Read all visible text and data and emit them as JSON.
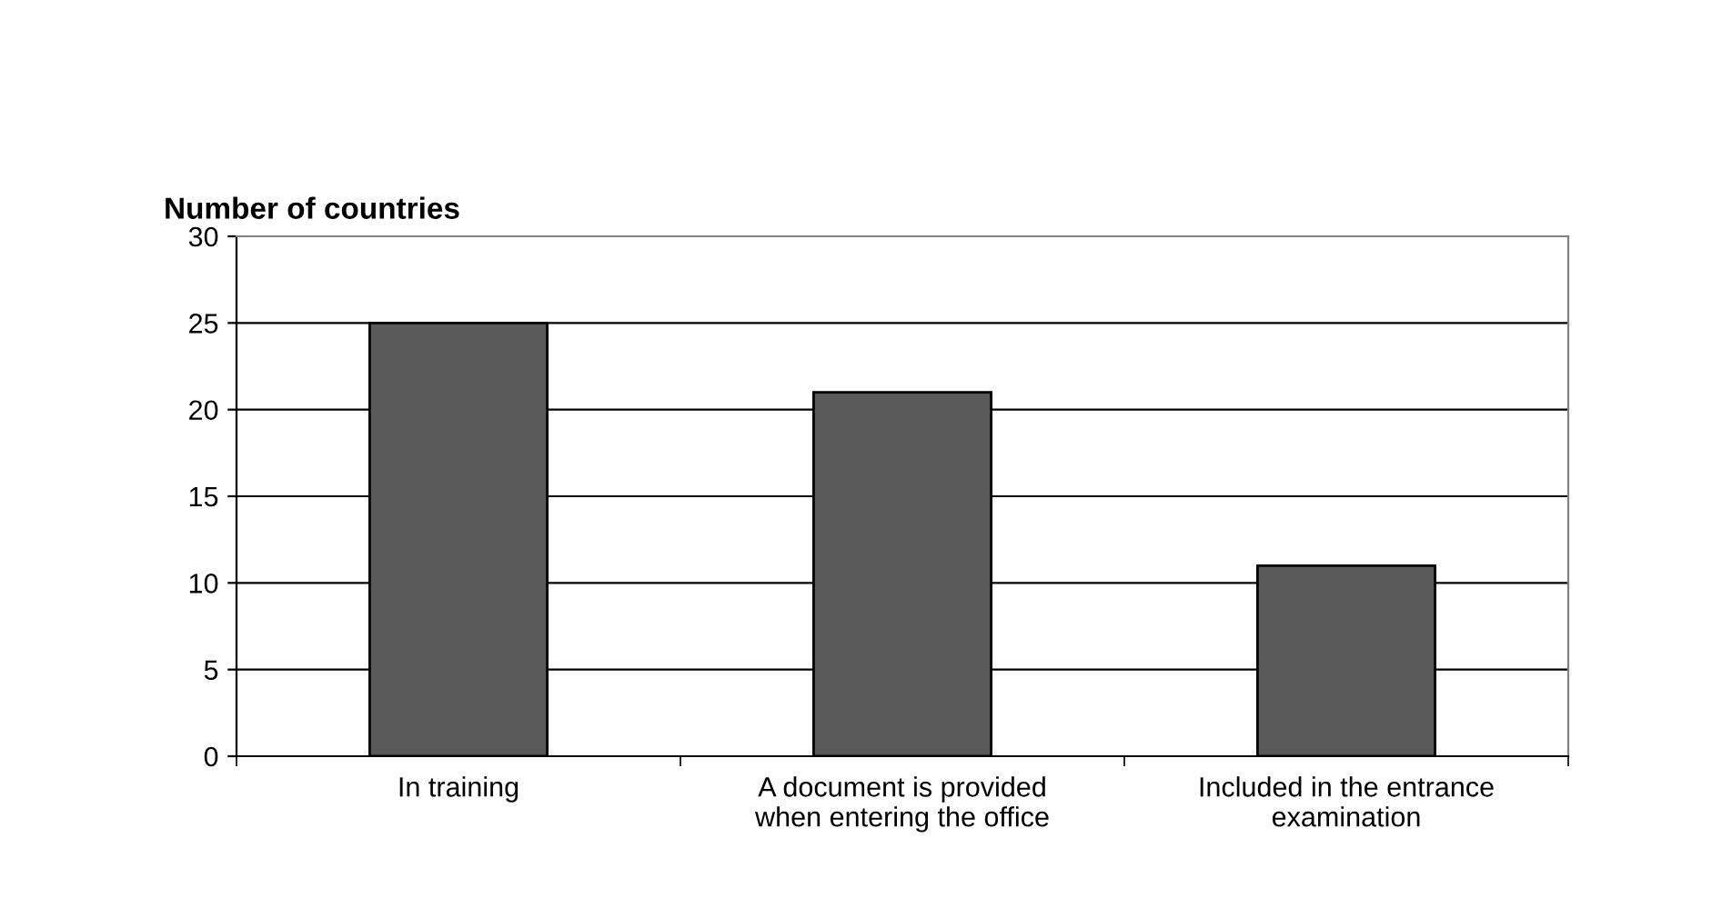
{
  "chart_data": {
    "type": "bar",
    "title": "Number of countries",
    "categories": [
      "In training",
      "A document is provided\nwhen entering the office",
      "Included in the entrance\nexamination"
    ],
    "values": [
      25,
      21,
      11
    ],
    "color": "#595959",
    "ylim": [
      0,
      30
    ],
    "yticks": [
      0,
      5,
      10,
      15,
      20,
      25,
      30
    ],
    "grid": "y"
  }
}
